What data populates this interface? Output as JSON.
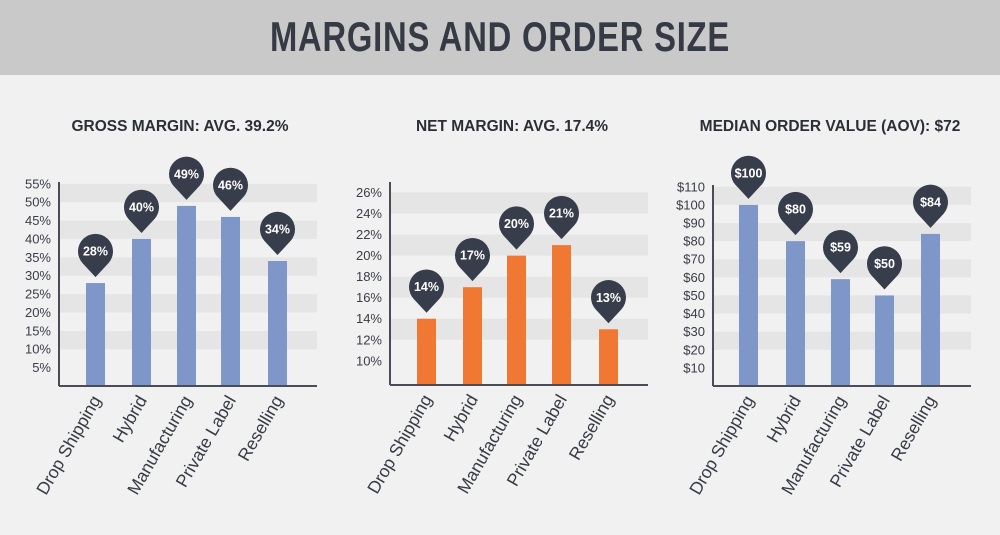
{
  "header": {
    "title": "MARGINS AND ORDER SIZE"
  },
  "colors": {
    "banner": "#c9c9c9",
    "blue_bar": "#7f96c8",
    "orange_bar": "#f07832",
    "pin": "#383d4b",
    "band": "#e5e5e5"
  },
  "chart_data": [
    {
      "type": "bar",
      "title": "GROSS MARGIN: AVG. 39.2%",
      "categories": [
        "Drop Shipping",
        "Hybrid",
        "Manufacturing",
        "Private Label",
        "Reselling"
      ],
      "values": [
        28,
        40,
        49,
        46,
        34
      ],
      "labels": [
        "28%",
        "40%",
        "49%",
        "46%",
        "34%"
      ],
      "yticks": [
        "5%",
        "10%",
        "15%",
        "20%",
        "25%",
        "30%",
        "35%",
        "40%",
        "45%",
        "50%",
        "55%"
      ],
      "ytick_values": [
        5,
        10,
        15,
        20,
        25,
        30,
        35,
        40,
        45,
        50,
        55
      ],
      "ylim": [
        0,
        55.5
      ],
      "color": "#7f96c8"
    },
    {
      "type": "bar",
      "title": "NET MARGIN: AVG. 17.4%",
      "categories": [
        "Drop Shipping",
        "Hybrid",
        "Manufacturing",
        "Private Label",
        "Reselling"
      ],
      "values": [
        14,
        17,
        20,
        21,
        13
      ],
      "labels": [
        "14%",
        "17%",
        "20%",
        "21%",
        "13%"
      ],
      "yticks": [
        "10%",
        "12%",
        "14%",
        "16%",
        "18%",
        "20%",
        "22%",
        "24%",
        "26%"
      ],
      "ytick_values": [
        10,
        12,
        14,
        16,
        18,
        20,
        22,
        24,
        26
      ],
      "ylim": [
        7.7,
        27
      ],
      "color": "#f07832"
    },
    {
      "type": "bar",
      "title": "MEDIAN ORDER VALUE (AOV):  $72",
      "categories": [
        "Drop Shipping",
        "Hybrid",
        "Manufacturing",
        "Private Label",
        "Reselling"
      ],
      "values": [
        100,
        80,
        59,
        50,
        84
      ],
      "labels": [
        "$100",
        "$80",
        "$59",
        "$50",
        "$84"
      ],
      "yticks": [
        "$10",
        "$20",
        "$30",
        "$40",
        "$50",
        "$60",
        "$70",
        "$80",
        "$90",
        "$100",
        "$110"
      ],
      "ytick_values": [
        10,
        20,
        30,
        40,
        50,
        60,
        70,
        80,
        90,
        100,
        110
      ],
      "ylim": [
        0,
        111
      ],
      "color": "#7f96c8"
    }
  ]
}
